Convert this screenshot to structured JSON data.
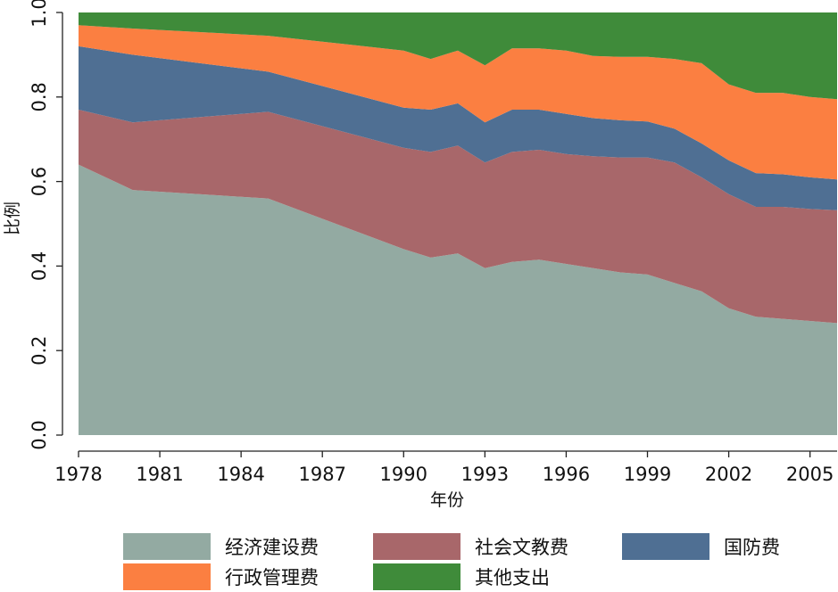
{
  "chart_data": {
    "type": "area",
    "stacked": true,
    "xlabel": "年份",
    "ylabel": "比例",
    "ylim": [
      0,
      1
    ],
    "xlim": [
      1978,
      2006
    ],
    "x_ticks": [
      "1978",
      "1981",
      "1984",
      "1987",
      "1990",
      "1993",
      "1996",
      "1999",
      "2002",
      "2005"
    ],
    "y_ticks": [
      "0.0",
      "0.2",
      "0.4",
      "0.6",
      "0.8",
      "1.0"
    ],
    "legend_position": "bottom",
    "x": [
      1978,
      1980,
      1985,
      1990,
      1991,
      1992,
      1993,
      1994,
      1995,
      1996,
      1997,
      1998,
      1999,
      2000,
      2001,
      2002,
      2003,
      2004,
      2005,
      2006
    ],
    "series": [
      {
        "name": "经济建设费",
        "color": "#93aaa2",
        "values": [
          0.64,
          0.58,
          0.56,
          0.44,
          0.42,
          0.43,
          0.395,
          0.41,
          0.415,
          0.405,
          0.395,
          0.385,
          0.38,
          0.36,
          0.34,
          0.3,
          0.28,
          0.275,
          0.27,
          0.265
        ]
      },
      {
        "name": "社会文教费",
        "color": "#a8676a",
        "values": [
          0.13,
          0.16,
          0.205,
          0.24,
          0.25,
          0.255,
          0.25,
          0.26,
          0.26,
          0.26,
          0.265,
          0.272,
          0.277,
          0.285,
          0.27,
          0.27,
          0.26,
          0.265,
          0.265,
          0.267
        ]
      },
      {
        "name": "国防费",
        "color": "#4f6f93",
        "values": [
          0.15,
          0.16,
          0.095,
          0.095,
          0.1,
          0.1,
          0.095,
          0.1,
          0.095,
          0.095,
          0.09,
          0.088,
          0.085,
          0.08,
          0.08,
          0.08,
          0.08,
          0.077,
          0.075,
          0.073
        ]
      },
      {
        "name": "行政管理费",
        "color": "#fb7f41",
        "values": [
          0.05,
          0.062,
          0.085,
          0.135,
          0.12,
          0.125,
          0.135,
          0.145,
          0.145,
          0.15,
          0.147,
          0.15,
          0.153,
          0.165,
          0.19,
          0.18,
          0.19,
          0.193,
          0.19,
          0.19
        ]
      },
      {
        "name": "其他支出",
        "color": "#3f8b3a",
        "values": [
          0.03,
          0.038,
          0.055,
          0.09,
          0.11,
          0.09,
          0.125,
          0.085,
          0.085,
          0.09,
          0.103,
          0.105,
          0.105,
          0.11,
          0.12,
          0.17,
          0.19,
          0.19,
          0.2,
          0.205
        ]
      }
    ]
  }
}
